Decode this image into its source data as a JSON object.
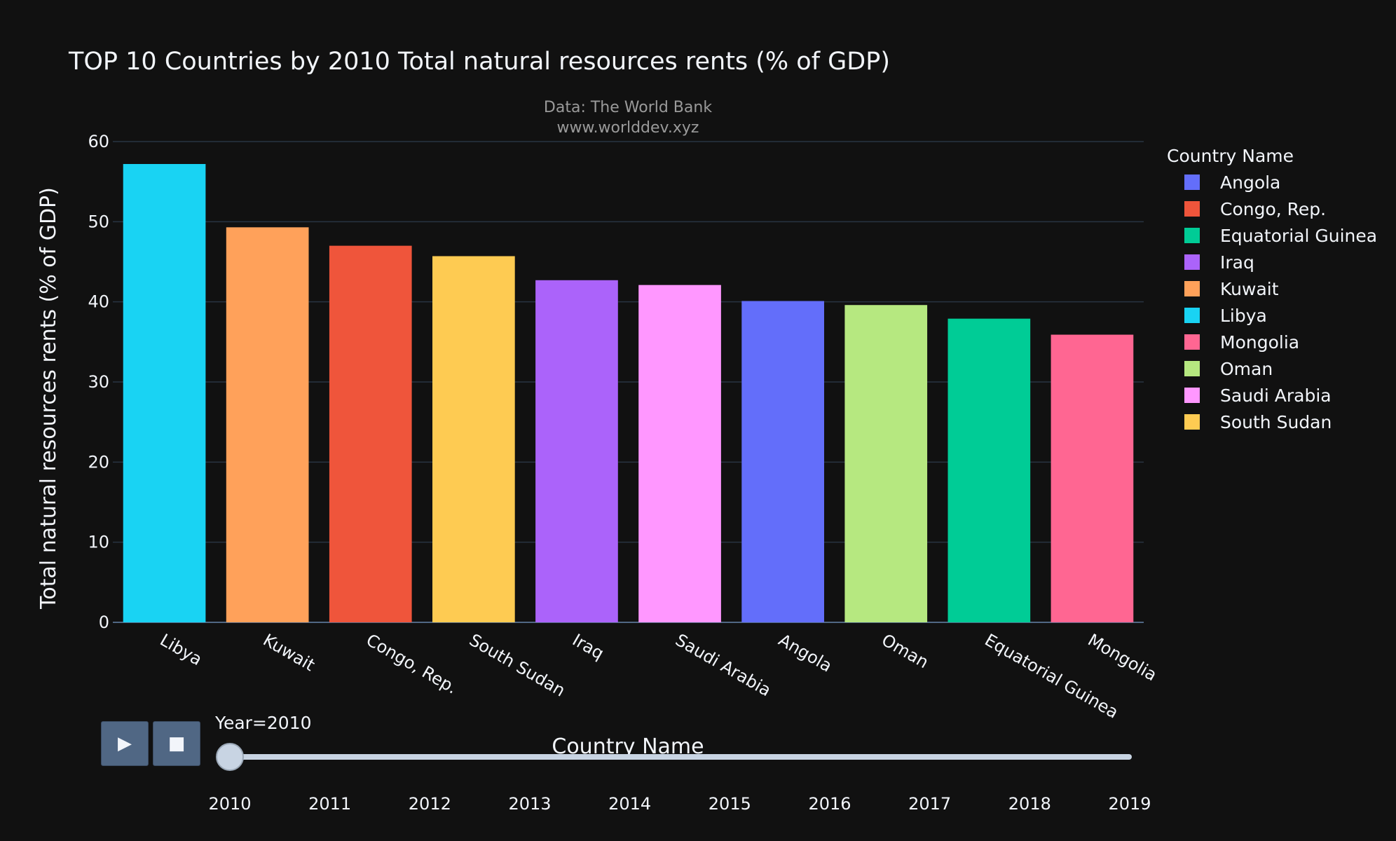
{
  "chart_data": {
    "type": "bar",
    "title": "TOP 10 Countries by 2010 Total natural resources rents (% of GDP)",
    "subtitle_lines": [
      "Data: The World Bank",
      "www.worlddev.xyz"
    ],
    "xlabel": "Country Name",
    "ylabel": "Total natural resources rents (% of GDP)",
    "ylim": [
      0,
      60
    ],
    "yticks": [
      0,
      10,
      20,
      30,
      40,
      50,
      60
    ],
    "grid": true,
    "categories": [
      "Libya",
      "Kuwait",
      "Congo, Rep.",
      "South Sudan",
      "Iraq",
      "Saudi Arabia",
      "Angola",
      "Oman",
      "Equatorial Guinea",
      "Mongolia"
    ],
    "values": [
      57.2,
      49.3,
      47.0,
      45.7,
      42.7,
      42.1,
      40.1,
      39.6,
      37.9,
      35.9
    ],
    "colors": [
      "#19d3f3",
      "#ffa15a",
      "#ef553b",
      "#fecb52",
      "#ab63fa",
      "#ff97ff",
      "#636efa",
      "#b6e880",
      "#00cc96",
      "#ff6692"
    ],
    "legend": {
      "title": "Country Name",
      "placement": "right",
      "entries": [
        {
          "name": "Angola",
          "color": "#636efa"
        },
        {
          "name": "Congo, Rep.",
          "color": "#ef553b"
        },
        {
          "name": "Equatorial Guinea",
          "color": "#00cc96"
        },
        {
          "name": "Iraq",
          "color": "#ab63fa"
        },
        {
          "name": "Kuwait",
          "color": "#ffa15a"
        },
        {
          "name": "Libya",
          "color": "#19d3f3"
        },
        {
          "name": "Mongolia",
          "color": "#ff6692"
        },
        {
          "name": "Oman",
          "color": "#b6e880"
        },
        {
          "name": "Saudi Arabia",
          "color": "#ff97ff"
        },
        {
          "name": "South Sudan",
          "color": "#fecb52"
        }
      ]
    }
  },
  "controls": {
    "play_icon": "play-icon",
    "stop_icon": "stop-icon",
    "play_symbol": "▶",
    "stop_symbol": "■"
  },
  "slider": {
    "current_label": "Year=2010",
    "years": [
      "2010",
      "2011",
      "2012",
      "2013",
      "2014",
      "2015",
      "2016",
      "2017",
      "2018",
      "2019"
    ],
    "selected": "2010"
  },
  "theme": {
    "background": "#111111",
    "grid": "#283442",
    "slider_track": "#c8d4e3",
    "button": "#506784"
  }
}
